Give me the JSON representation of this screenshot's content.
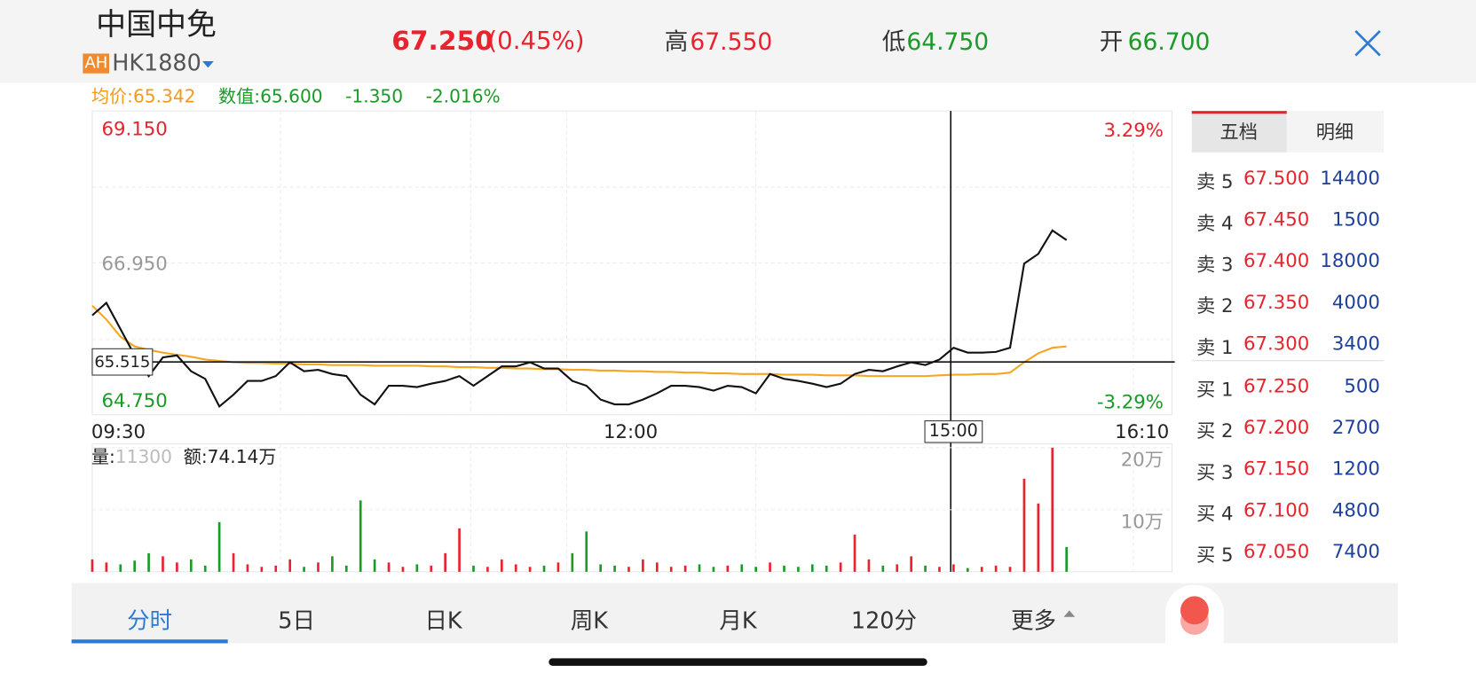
{
  "header": {
    "name": "中国中免",
    "badge": "AH",
    "code": "HK1880",
    "price": "67.250",
    "change": "(0.45%)",
    "high_label": "高",
    "high": "67.550",
    "low_label": "低",
    "low": "64.750",
    "open_label": "开",
    "open": "66.700"
  },
  "info": {
    "avg_label": "均价:",
    "avg": "65.342",
    "value_label": "数值:",
    "value": "65.600",
    "diff": "-1.350",
    "diff_pct": "-2.016%"
  },
  "chart": {
    "price": {
      "ylim": [
        64.75,
        69.15
      ],
      "yticks": [
        {
          "value": 69.15,
          "label": "69.150"
        },
        {
          "value": 66.95,
          "label": "66.950"
        },
        {
          "value": 64.75,
          "label": "64.750"
        }
      ],
      "pct_high": "3.29%",
      "pct_low": "-3.29%",
      "values": [
        66.19,
        66.37,
        65.99,
        65.61,
        65.31,
        65.58,
        65.61,
        65.38,
        65.27,
        64.87,
        65.04,
        65.24,
        65.24,
        65.31,
        65.51,
        65.38,
        65.4,
        65.34,
        65.31,
        65.04,
        64.9,
        65.17,
        65.17,
        65.15,
        65.2,
        65.24,
        65.31,
        65.17,
        65.31,
        65.45,
        65.45,
        65.51,
        65.42,
        65.42,
        65.24,
        65.17,
        64.97,
        64.9,
        64.9,
        64.97,
        65.06,
        65.17,
        65.17,
        65.15,
        65.1,
        65.17,
        65.15,
        65.06,
        65.34,
        65.27,
        65.24,
        65.2,
        65.15,
        65.2,
        65.34,
        65.4,
        65.38,
        65.45,
        65.51,
        65.47,
        65.55,
        65.72,
        65.65,
        65.65,
        65.66,
        65.72,
        66.94,
        67.08,
        67.42,
        67.28
      ],
      "avg_values": [
        66.33,
        66.13,
        65.88,
        65.74,
        65.69,
        65.65,
        65.62,
        65.59,
        65.55,
        65.53,
        65.51,
        65.5,
        65.5,
        65.49,
        65.49,
        65.48,
        65.48,
        65.47,
        65.47,
        65.47,
        65.46,
        65.46,
        65.46,
        65.46,
        65.45,
        65.45,
        65.44,
        65.44,
        65.43,
        65.43,
        65.42,
        65.42,
        65.41,
        65.41,
        65.4,
        65.4,
        65.39,
        65.39,
        65.38,
        65.38,
        65.37,
        65.37,
        65.36,
        65.36,
        65.35,
        65.35,
        65.34,
        65.34,
        65.34,
        65.33,
        65.33,
        65.33,
        65.32,
        65.32,
        65.32,
        65.31,
        65.31,
        65.31,
        65.31,
        65.31,
        65.32,
        65.33,
        65.33,
        65.34,
        65.34,
        65.36,
        65.51,
        65.64,
        65.72,
        65.74
      ]
    },
    "crosshair_price": {
      "value": 65.515,
      "label": "65.515"
    },
    "crosshair_time": "15:00",
    "times": [
      "09:30",
      "12:00",
      "16:10"
    ],
    "volume": {
      "label": "量:",
      "current": "11300",
      "amount": "额:74.14万",
      "ylim": [
        0,
        200000
      ],
      "yticks": [
        {
          "value": 200000,
          "label": "20万"
        },
        {
          "value": 100000,
          "label": "10万"
        }
      ],
      "values": [
        20000,
        15000,
        12000,
        18000,
        30000,
        25000,
        15000,
        20000,
        10000,
        80000,
        30000,
        12000,
        8000,
        10000,
        20000,
        8000,
        15000,
        25000,
        10000,
        115000,
        20000,
        15000,
        8000,
        12000,
        10000,
        30000,
        70000,
        10000,
        8000,
        20000,
        12000,
        8000,
        10000,
        15000,
        30000,
        65000,
        12000,
        10000,
        8000,
        20000,
        15000,
        8000,
        10000,
        12000,
        8000,
        10000,
        12000,
        8000,
        15000,
        10000,
        8000,
        12000,
        10000,
        15000,
        60000,
        20000,
        10000,
        12000,
        25000,
        10000,
        8000,
        12000,
        6000,
        8000,
        10000,
        8000,
        150000,
        110000,
        200000,
        40000
      ]
    }
  },
  "order_book": {
    "tabs": [
      "五档",
      "明细"
    ],
    "asks": [
      {
        "label": "卖 5",
        "price": "67.500",
        "volume": "14400"
      },
      {
        "label": "卖 4",
        "price": "67.450",
        "volume": "1500"
      },
      {
        "label": "卖 3",
        "price": "67.400",
        "volume": "18000"
      },
      {
        "label": "卖 2",
        "price": "67.350",
        "volume": "4000"
      },
      {
        "label": "卖 1",
        "price": "67.300",
        "volume": "3400"
      }
    ],
    "bids": [
      {
        "label": "买 1",
        "price": "67.250",
        "volume": "500"
      },
      {
        "label": "买 2",
        "price": "67.200",
        "volume": "2700"
      },
      {
        "label": "买 3",
        "price": "67.150",
        "volume": "1200"
      },
      {
        "label": "买 4",
        "price": "67.100",
        "volume": "4800"
      },
      {
        "label": "买 5",
        "price": "67.050",
        "volume": "7400"
      }
    ]
  },
  "tabs": [
    "分时",
    "5日",
    "日K",
    "周K",
    "月K",
    "120分",
    "更多"
  ]
}
